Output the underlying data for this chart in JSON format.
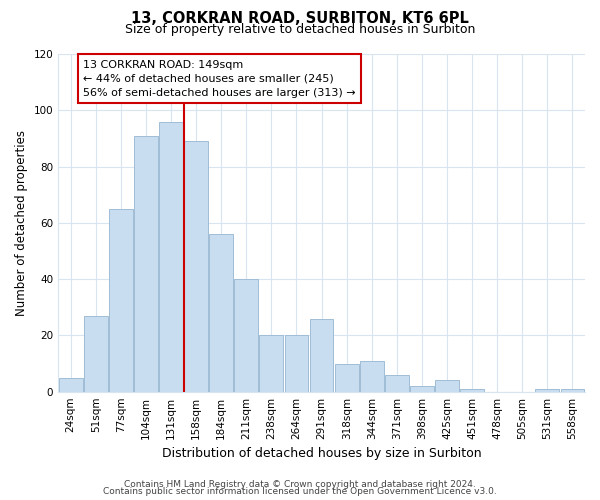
{
  "title1": "13, CORKRAN ROAD, SURBITON, KT6 6PL",
  "title2": "Size of property relative to detached houses in Surbiton",
  "xlabel": "Distribution of detached houses by size in Surbiton",
  "ylabel": "Number of detached properties",
  "categories": [
    "24sqm",
    "51sqm",
    "77sqm",
    "104sqm",
    "131sqm",
    "158sqm",
    "184sqm",
    "211sqm",
    "238sqm",
    "264sqm",
    "291sqm",
    "318sqm",
    "344sqm",
    "371sqm",
    "398sqm",
    "425sqm",
    "451sqm",
    "478sqm",
    "505sqm",
    "531sqm",
    "558sqm"
  ],
  "values": [
    5,
    27,
    65,
    91,
    96,
    89,
    56,
    40,
    20,
    20,
    26,
    10,
    11,
    6,
    2,
    4,
    1,
    0,
    0,
    1,
    1
  ],
  "bar_color": "#c8ddef",
  "bar_edge_color": "#a0bdd6",
  "vline_color": "#cc0000",
  "annotation_title": "13 CORKRAN ROAD: 149sqm",
  "annotation_line1": "← 44% of detached houses are smaller (245)",
  "annotation_line2": "56% of semi-detached houses are larger (313) →",
  "annotation_box_color": "#ffffff",
  "annotation_box_edge": "#cc0000",
  "ylim": [
    0,
    120
  ],
  "yticks": [
    0,
    20,
    40,
    60,
    80,
    100,
    120
  ],
  "footer1": "Contains HM Land Registry data © Crown copyright and database right 2024.",
  "footer2": "Contains public sector information licensed under the Open Government Licence v3.0.",
  "bg_color": "#ffffff",
  "plot_bg_color": "#ffffff",
  "grid_color": "#d8e4f0",
  "title1_fontsize": 10.5,
  "title2_fontsize": 9,
  "xlabel_fontsize": 9,
  "ylabel_fontsize": 8.5,
  "tick_fontsize": 7.5,
  "footer_fontsize": 6.5,
  "annotation_fontsize": 8
}
